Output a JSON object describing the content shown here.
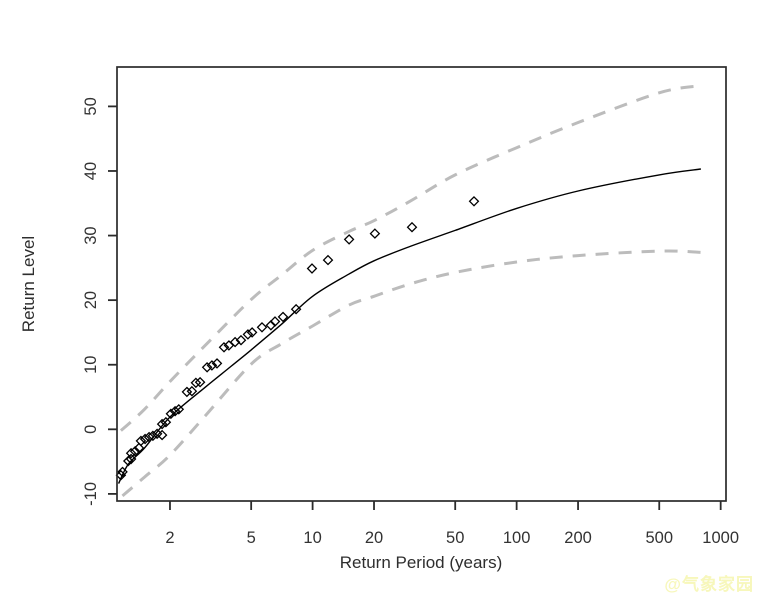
{
  "figure": {
    "background": "#ffffff",
    "watermark_text": "@气象家园",
    "watermark_color": "#f7f7bb"
  },
  "chart_data": {
    "type": "line",
    "title": "",
    "xlabel": "Return Period (years)",
    "ylabel": "Return Level",
    "x_scale": "log10",
    "xlim": [
      1.1,
      1062
    ],
    "ylim": [
      -11.1,
      56.1
    ],
    "x_ticks": [
      2,
      5,
      10,
      20,
      50,
      100,
      200,
      500,
      1000
    ],
    "y_ticks": [
      -10,
      0,
      10,
      20,
      30,
      40,
      50
    ],
    "grid": false,
    "legend": "none",
    "axis_color": "#2b2b2b",
    "tick_label_color": "#333333",
    "series": [
      {
        "name": "upper-confidence-band",
        "type": "line",
        "linestyle": "dashed",
        "color": "#bcbcbc",
        "width": 3,
        "x": [
          1.15,
          1.5,
          2,
          3,
          5,
          7,
          10,
          15,
          20,
          30,
          50,
          100,
          200,
          500,
          800
        ],
        "y": [
          -0.2,
          3.1,
          7.4,
          13.1,
          20.1,
          23.8,
          27.7,
          30.6,
          32.3,
          35.3,
          39.4,
          43.6,
          47.5,
          52.1,
          53.2
        ]
      },
      {
        "name": "lower-confidence-band",
        "type": "line",
        "linestyle": "dashed",
        "color": "#bcbcbc",
        "width": 3,
        "x": [
          1.17,
          1.5,
          2,
          3,
          5,
          7,
          10,
          15,
          20,
          30,
          50,
          100,
          200,
          500,
          800
        ],
        "y": [
          -10.3,
          -7.4,
          -4.0,
          2.2,
          10.1,
          13.2,
          16.0,
          19.2,
          20.6,
          22.5,
          24.3,
          25.9,
          26.9,
          27.6,
          27.4
        ]
      },
      {
        "name": "fitted-return-level-curve",
        "type": "line",
        "linestyle": "solid",
        "color": "#000000",
        "width": 1.4,
        "x": [
          1.12,
          1.25,
          1.5,
          2,
          3,
          4,
          5,
          7,
          10,
          15,
          20,
          30,
          50,
          100,
          200,
          500,
          800
        ],
        "y": [
          -8.4,
          -5.4,
          -2.9,
          1.9,
          6.6,
          9.8,
          12.3,
          16.2,
          20.6,
          24.0,
          26.1,
          28.3,
          30.8,
          34.2,
          36.9,
          39.4,
          40.3
        ]
      },
      {
        "name": "empirical-return-levels",
        "type": "scatter",
        "marker": "diamond",
        "color": "#000000",
        "x": [
          1.15,
          1.17,
          1.25,
          1.29,
          1.29,
          1.35,
          1.41,
          1.44,
          1.51,
          1.58,
          1.65,
          1.73,
          1.83,
          1.83,
          1.91,
          2.02,
          2.12,
          2.21,
          2.42,
          2.56,
          2.68,
          2.81,
          3.04,
          3.21,
          3.4,
          3.68,
          3.89,
          4.17,
          4.46,
          4.82,
          5.05,
          5.65,
          6.25,
          6.54,
          7.16,
          8.3,
          9.93,
          11.9,
          15.1,
          20.2,
          30.7,
          61.8
        ],
        "y": [
          -7.1,
          -6.6,
          -4.9,
          -4.6,
          -3.7,
          -3.4,
          -2.9,
          -1.8,
          -1.5,
          -1.2,
          -1.0,
          -0.7,
          -0.9,
          0.8,
          1.1,
          2.4,
          2.8,
          3.1,
          5.8,
          5.9,
          7.2,
          7.3,
          9.6,
          9.9,
          10.2,
          12.7,
          13.0,
          13.5,
          13.8,
          14.7,
          15.0,
          15.8,
          16.1,
          16.7,
          17.4,
          18.6,
          24.9,
          26.2,
          29.4,
          30.3,
          31.3,
          35.3
        ]
      }
    ]
  }
}
